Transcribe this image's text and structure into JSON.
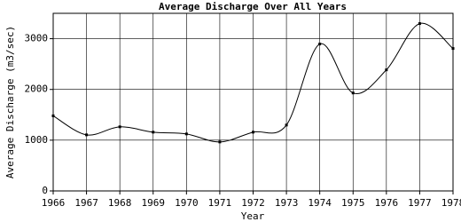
{
  "chart_data": {
    "type": "line",
    "title": "Average Discharge Over All Years",
    "x_label": "Year",
    "y_label": "Average Discharge (m3/sec)",
    "x": [
      1966,
      1967,
      1968,
      1969,
      1970,
      1971,
      1972,
      1973,
      1974,
      1975,
      1976,
      1977,
      1978
    ],
    "series": [
      {
        "name": "Average Discharge",
        "color": "#000000",
        "values": [
          1480,
          1105,
          1263,
          1158,
          1123,
          965,
          1158,
          1298,
          2895,
          1930,
          2386,
          3298,
          2807
        ]
      }
    ],
    "xlim": [
      1966,
      1978
    ],
    "xticks": [
      1966,
      1967,
      1968,
      1969,
      1970,
      1971,
      1972,
      1973,
      1974,
      1975,
      1976,
      1977,
      1978
    ],
    "ylim": [
      0,
      3500
    ],
    "yticks": [
      0,
      1000,
      2000,
      3000
    ],
    "grid": true
  }
}
